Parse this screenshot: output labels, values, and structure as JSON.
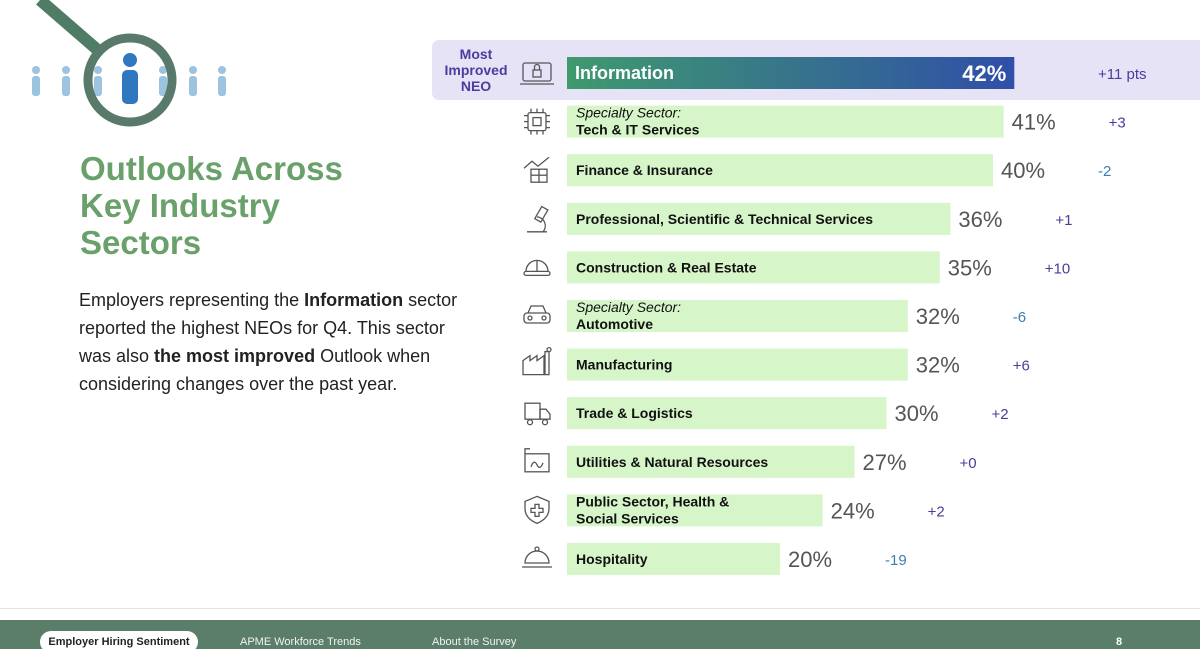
{
  "title": "Outlooks Across\nKey Industry\nSectors",
  "intro": {
    "p1": "Employers representing the ",
    "b1": "Information",
    "p2": " sector reported the highest NEOs for Q4. This sector was also ",
    "b2": "the most improved",
    "p3": " Outlook when considering changes over the past year."
  },
  "badge": "Most\nImproved\nNEO",
  "footer": {
    "tabs": [
      "Employer Hiring Sentiment",
      "APME Workforce Trends",
      "About the Survey"
    ],
    "page": "8"
  },
  "colors": {
    "title": "#6aa06a",
    "bar": "#d6f5c8",
    "highlight_gradient": [
      "#3f9a6e",
      "#2f4fa8"
    ],
    "change": "#4a3d9e",
    "footer": "#5b7e6a"
  },
  "chart_data": {
    "type": "bar",
    "orientation": "horizontal",
    "categories": [
      {
        "prefix": "",
        "name": "Information",
        "icon": "laptop-lock-icon"
      },
      {
        "prefix": "Specialty Sector:",
        "name": "Tech & IT Services",
        "icon": "chip-icon"
      },
      {
        "prefix": "",
        "name": "Finance & Insurance",
        "icon": "growth-chart-icon"
      },
      {
        "prefix": "",
        "name": "Professional, Scientific & Technical Services",
        "icon": "microscope-icon"
      },
      {
        "prefix": "",
        "name": "Construction & Real Estate",
        "icon": "hard-hat-icon"
      },
      {
        "prefix": "Specialty Sector:",
        "name": "Automotive",
        "icon": "car-icon"
      },
      {
        "prefix": "",
        "name": "Manufacturing",
        "icon": "factory-icon"
      },
      {
        "prefix": "",
        "name": "Trade & Logistics",
        "icon": "truck-icon"
      },
      {
        "prefix": "",
        "name": "Utilities & Natural Resources",
        "icon": "utility-icon"
      },
      {
        "prefix": "",
        "name": "Public Sector, Health &\nSocial Services",
        "icon": "shield-health-icon"
      },
      {
        "prefix": "",
        "name": "Hospitality",
        "icon": "cloche-icon"
      }
    ],
    "values": [
      42,
      41,
      40,
      36,
      35,
      32,
      32,
      30,
      27,
      24,
      20
    ],
    "value_labels": [
      "42%",
      "41%",
      "40%",
      "36%",
      "35%",
      "32%",
      "32%",
      "30%",
      "27%",
      "24%",
      "20%"
    ],
    "change_labels": [
      "+11 pts",
      "+3",
      "-2",
      "+1",
      "+10",
      "-6",
      "+6",
      "+2",
      "+0",
      "+2",
      "-19"
    ],
    "highlighted_index": 0
  }
}
